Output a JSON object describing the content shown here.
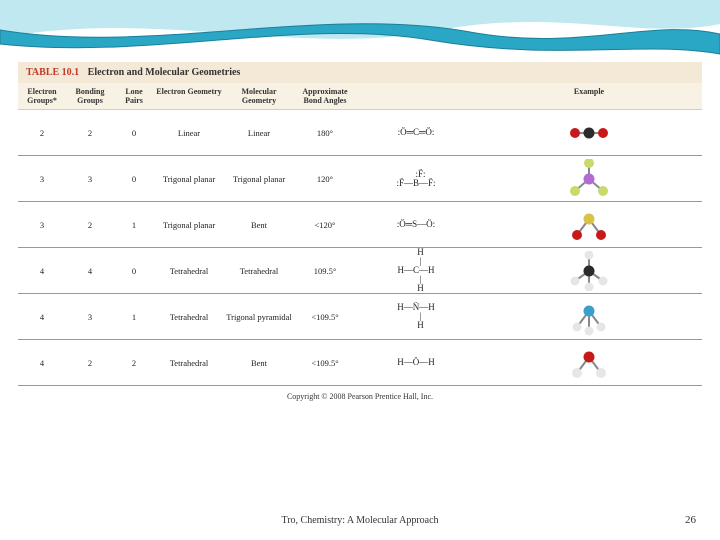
{
  "decor": {
    "wave_back_color": "#bfe8f0",
    "wave_front_color": "#2aa7c4",
    "wave_stroke": "#1c7f99"
  },
  "table": {
    "label": "TABLE 10.1",
    "title": "Electron and Molecular Geometries",
    "title_bg": "#f3e9d6",
    "header_bg": "#f8f2e4",
    "label_color": "#c0392b",
    "columns": [
      "Electron Groups*",
      "Bonding Groups",
      "Lone Pairs",
      "Electron Geometry",
      "Molecular Geometry",
      "Approximate Bond Angles",
      "",
      "Example"
    ],
    "rows": [
      {
        "eg": "2",
        "bg": "2",
        "lp": "0",
        "egeo": "Linear",
        "mgeo": "Linear",
        "angle": "180°",
        "lewis": ":Ö═C═Ö:",
        "model": {
          "type": "linear",
          "center": "#2b2b2b",
          "outer": "#c61a1a"
        }
      },
      {
        "eg": "3",
        "bg": "3",
        "lp": "0",
        "egeo": "Trigonal planar",
        "mgeo": "Trigonal planar",
        "angle": "120°",
        "lewis": "    :F̈:\n:F̈—B—F̈:",
        "model": {
          "type": "trigonal",
          "center": "#b36bd1",
          "outer": "#c9d96a"
        }
      },
      {
        "eg": "3",
        "bg": "2",
        "lp": "1",
        "egeo": "Trigonal planar",
        "mgeo": "Bent",
        "angle": "<120°",
        "lewis": ":Ö═S—Ö:",
        "model": {
          "type": "bent",
          "center": "#d9c24a",
          "outer": "#c61a1a"
        }
      },
      {
        "eg": "4",
        "bg": "4",
        "lp": "0",
        "egeo": "Tetrahedral",
        "mgeo": "Tetrahedral",
        "angle": "109.5°",
        "lewis": "    H\n    |\nH—C—H\n    |\n    H",
        "model": {
          "type": "tetra",
          "center": "#2b2b2b",
          "outer": "#e6e6e6"
        }
      },
      {
        "eg": "4",
        "bg": "3",
        "lp": "1",
        "egeo": "Tetrahedral",
        "mgeo": "Trigonal pyramidal",
        "angle": "<109.5°",
        "lewis": "H—N̈—H\n    |\n    H",
        "model": {
          "type": "pyramid",
          "center": "#3aa0c9",
          "outer": "#e6e6e6"
        }
      },
      {
        "eg": "4",
        "bg": "2",
        "lp": "2",
        "egeo": "Tetrahedral",
        "mgeo": "Bent",
        "angle": "<109.5°",
        "lewis": "H—Ö—H",
        "model": {
          "type": "bent",
          "center": "#c61a1a",
          "outer": "#e6e6e6"
        }
      }
    ],
    "copyright": "Copyright © 2008 Pearson Prentice Hall, Inc."
  },
  "footer": {
    "source": "Tro, Chemistry: A Molecular Approach",
    "page": "26"
  }
}
